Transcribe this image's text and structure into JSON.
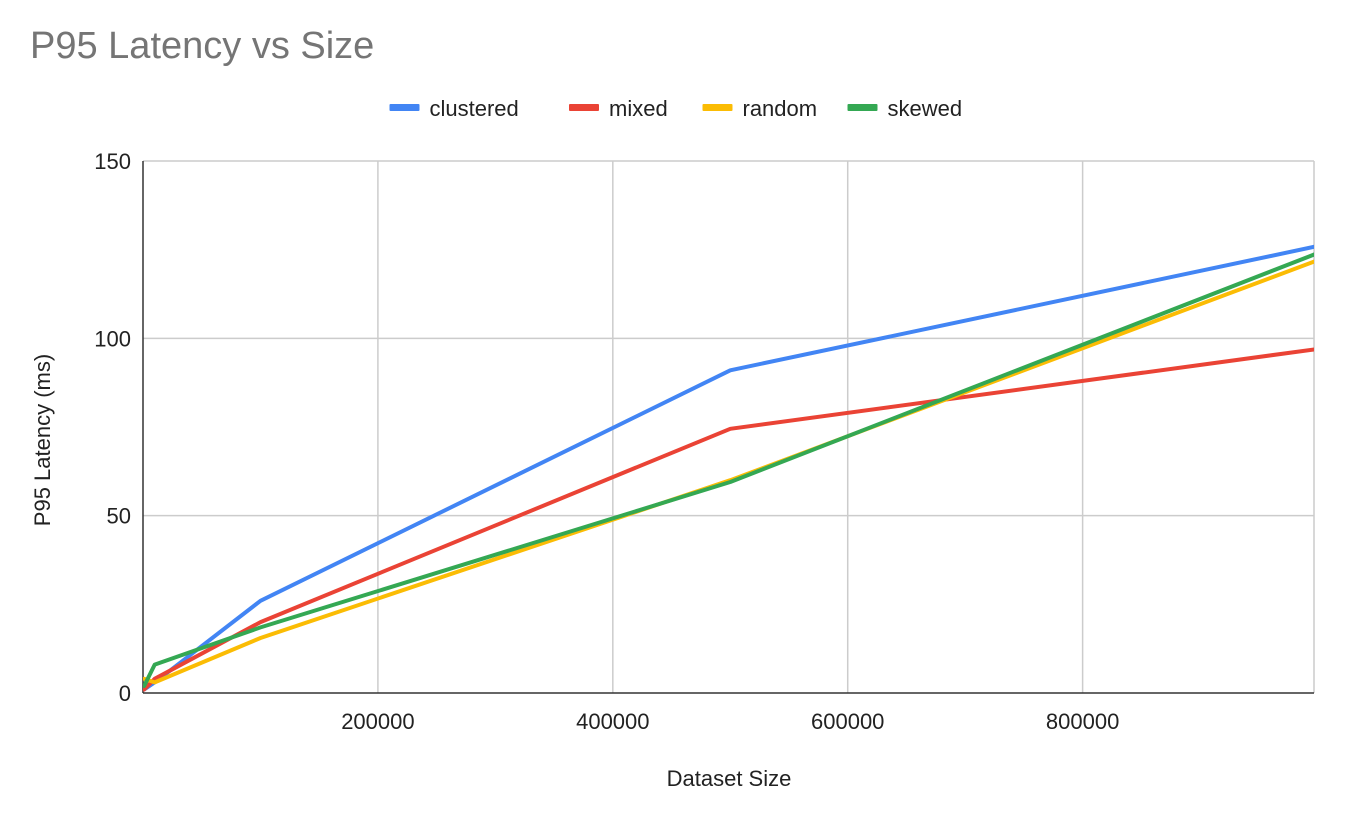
{
  "chart_data": {
    "type": "line",
    "title": "P95 Latency vs Size",
    "xlabel": "Dataset Size",
    "ylabel": "P95 Latency (ms)",
    "xlim": [
      0,
      997000
    ],
    "ylim": [
      0,
      150
    ],
    "x_ticks": [
      200000,
      400000,
      600000,
      800000
    ],
    "y_ticks": [
      0,
      50,
      100,
      150
    ],
    "grid": true,
    "legend_position": "top-center",
    "x": [
      1000,
      10000,
      100000,
      500000,
      1000000
    ],
    "series": [
      {
        "name": "clustered",
        "color": "#4285f4",
        "values": [
          1,
          3,
          26,
          91,
          126
        ]
      },
      {
        "name": "mixed",
        "color": "#ea4335",
        "values": [
          1,
          4,
          20,
          74.5,
          97
        ]
      },
      {
        "name": "random",
        "color": "#fbbc04",
        "values": [
          4,
          3,
          15.5,
          60,
          122
        ]
      },
      {
        "name": "skewed",
        "color": "#34a853",
        "values": [
          2,
          8,
          18.5,
          59.5,
          124
        ]
      }
    ]
  }
}
